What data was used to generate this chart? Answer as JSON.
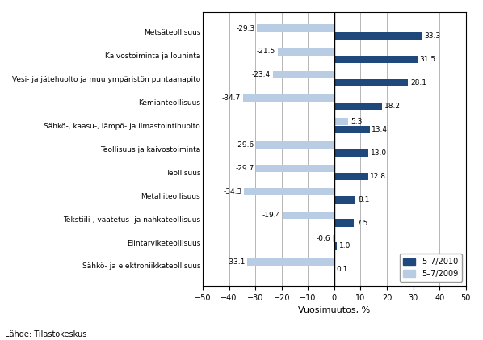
{
  "categories": [
    "Metsäteollisuus",
    "Kaivostoiminta ja louhinta",
    "Vesi- ja jätehuolto ja muu ympäristön puhtaanapito",
    "Kemianteollisuus",
    "Sähkö-, kaasu-, lämpö- ja ilmastointihuolto",
    "Teollisuus ja kaivostoiminta",
    "Teollisuus",
    "Metalliteollisuus",
    "Tekstiili-, vaatetus- ja nahkateollisuus",
    "Elintarviketeollisuus",
    "Sähkö- ja elektroniikkateollisuus"
  ],
  "values_2010": [
    33.3,
    31.5,
    28.1,
    18.2,
    13.4,
    13.0,
    12.8,
    8.1,
    7.5,
    1.0,
    0.1
  ],
  "values_2009": [
    -29.3,
    -21.5,
    -23.4,
    -34.7,
    5.3,
    -29.6,
    -29.7,
    -34.3,
    -19.4,
    -0.6,
    -33.1
  ],
  "color_2010": "#1F497D",
  "color_2009": "#B8CCE4",
  "xlabel": "Vuosimuutos, %",
  "legend_2010": "5–7/2010",
  "legend_2009": "5–7/2009",
  "xlim": [
    -50,
    50
  ],
  "xticks": [
    -50,
    -40,
    -30,
    -20,
    -10,
    0,
    10,
    20,
    30,
    40,
    50
  ],
  "source": "Lähde: Tilastokeskus"
}
